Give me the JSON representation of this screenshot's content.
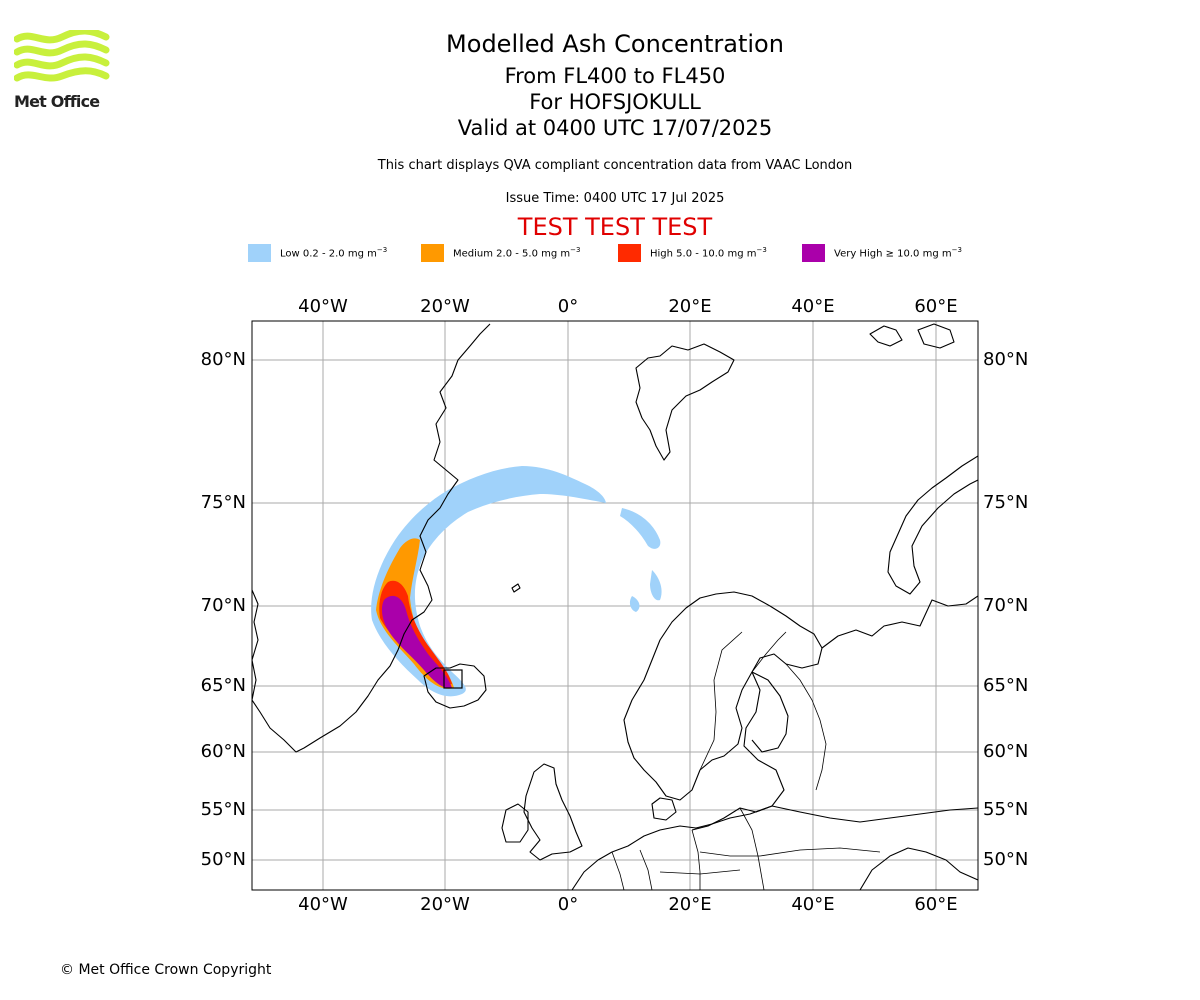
{
  "logo": {
    "text": "Met Office",
    "color": "#c8f03c"
  },
  "titles": {
    "main": "Modelled Ash Concentration",
    "levels": "From FL400 to FL450",
    "volcano": "For HOFSJOKULL",
    "valid": "Valid at 0400 UTC 17/07/2025",
    "subtitle": "This chart displays QVA compliant concentration data from VAAC London",
    "issue": "Issue Time: 0400 UTC 17 Jul 2025",
    "test": "TEST TEST TEST"
  },
  "legend": [
    {
      "label": "Low 0.2 - 2.0 mg m",
      "color": "#a0d2fa"
    },
    {
      "label": "Medium 2.0 - 5.0 mg m",
      "color": "#ff9900"
    },
    {
      "label": "High 5.0 - 10.0 mg m",
      "color": "#ff2a00"
    },
    {
      "label": "Very High ≥ 10.0 mg m",
      "color": "#aa00aa"
    }
  ],
  "legend_unit_exp": "−3",
  "axes": {
    "lon_labels": [
      "40°W",
      "20°W",
      "0°",
      "20°E",
      "40°E",
      "60°E"
    ],
    "lat_labels": [
      "80°N",
      "75°N",
      "70°N",
      "65°N",
      "60°N",
      "55°N",
      "50°N"
    ]
  },
  "copyright": "© Met Office Crown Copyright"
}
